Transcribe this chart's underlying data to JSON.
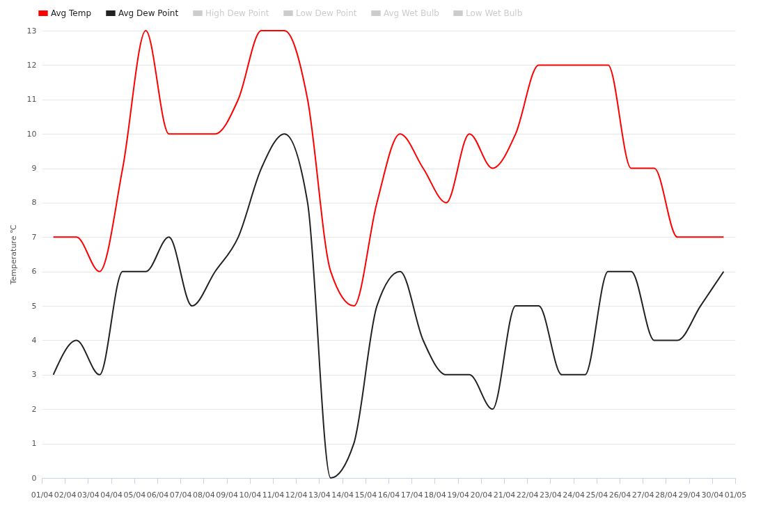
{
  "chart_data": {
    "type": "line",
    "ylabel": "Temperature ℃",
    "x": [
      "--04-01T12:00",
      "--04-02T12:00",
      "--04-03T12:00",
      "--04-04T12:00",
      "--04-05T12:00",
      "--04-06T12:00",
      "--04-07T12:00",
      "--04-08T12:00",
      "--04-09T12:00",
      "--04-10T12:00",
      "--04-11T12:00",
      "--04-12T12:00",
      "--04-13T12:00",
      "--04-14T12:00",
      "--04-15T12:00",
      "--04-16T12:00",
      "--04-17T12:00",
      "--04-18T12:00",
      "--04-19T12:00",
      "--04-20T12:00",
      "--04-21T12:00",
      "--04-22T12:00",
      "--04-23T12:00",
      "--04-24T12:00",
      "--04-25T12:00",
      "--04-26T12:00",
      "--04-27T12:00",
      "--04-28T12:00",
      "--04-29T12:00",
      "--04-30T12:00"
    ],
    "series": [
      {
        "name": "Avg Temp",
        "color": "#ff0000",
        "values": [
          7,
          7,
          6,
          9,
          13,
          10,
          10,
          10,
          11,
          13,
          13,
          11,
          6,
          5,
          8,
          10,
          9,
          8,
          10,
          9,
          10,
          12,
          12,
          12,
          12,
          9,
          9,
          7,
          7,
          7
        ]
      },
      {
        "name": "Avg Dew Point",
        "color": "#222222",
        "values": [
          3,
          4,
          3,
          6,
          6,
          7,
          5,
          6,
          7,
          9,
          10,
          8,
          0,
          1,
          5,
          6,
          4,
          3,
          3,
          2,
          5,
          5,
          3,
          3,
          6,
          6,
          4,
          4,
          5,
          6
        ]
      },
      {
        "name": "High Dew Point",
        "color": "#cccccc",
        "values": [
          null,
          null,
          null,
          null,
          null,
          null,
          null,
          null,
          null,
          null,
          null,
          null,
          null,
          null,
          null,
          null,
          null,
          null,
          null,
          null,
          null,
          null,
          null,
          null,
          null,
          null,
          null,
          null,
          null,
          null
        ]
      },
      {
        "name": "Low Dew Point",
        "color": "#cccccc",
        "values": [
          null,
          null,
          null,
          null,
          null,
          null,
          null,
          null,
          null,
          null,
          null,
          null,
          null,
          null,
          null,
          null,
          null,
          null,
          null,
          null,
          null,
          null,
          null,
          null,
          null,
          null,
          null,
          null,
          null,
          null
        ]
      },
      {
        "name": "Avg Wet Bulb",
        "color": "#cccccc",
        "values": [
          null,
          null,
          null,
          null,
          null,
          null,
          null,
          null,
          null,
          null,
          null,
          null,
          null,
          null,
          null,
          null,
          null,
          null,
          null,
          null,
          null,
          null,
          null,
          null,
          null,
          null,
          null,
          null,
          null,
          null
        ]
      },
      {
        "name": "Low Wet Bulb",
        "color": "#cccccc",
        "values": [
          null,
          null,
          null,
          null,
          null,
          null,
          null,
          null,
          null,
          null,
          null,
          null,
          null,
          null,
          null,
          null,
          null,
          null,
          null,
          null,
          null,
          null,
          null,
          null,
          null,
          null,
          null,
          null,
          null,
          null
        ]
      }
    ],
    "xlim": [
      "--04-01",
      "--05-01"
    ],
    "xticks": [
      {
        "value": "--04-01",
        "label": "01/04"
      },
      {
        "value": "--04-02",
        "label": "02/04"
      },
      {
        "value": "--04-03",
        "label": "03/04"
      },
      {
        "value": "--04-04",
        "label": "04/04"
      },
      {
        "value": "--04-05",
        "label": "05/04"
      },
      {
        "value": "--04-06",
        "label": "06/04"
      },
      {
        "value": "--04-07",
        "label": "07/04"
      },
      {
        "value": "--04-08",
        "label": "08/04"
      },
      {
        "value": "--04-09",
        "label": "09/04"
      },
      {
        "value": "--04-10",
        "label": "10/04"
      },
      {
        "value": "--04-11",
        "label": "11/04"
      },
      {
        "value": "--04-12",
        "label": "12/04"
      },
      {
        "value": "--04-13",
        "label": "13/04"
      },
      {
        "value": "--04-14",
        "label": "14/04"
      },
      {
        "value": "--04-15",
        "label": "15/04"
      },
      {
        "value": "--04-16",
        "label": "16/04"
      },
      {
        "value": "--04-17",
        "label": "17/04"
      },
      {
        "value": "--04-18",
        "label": "18/04"
      },
      {
        "value": "--04-19",
        "label": "19/04"
      },
      {
        "value": "--04-20",
        "label": "20/04"
      },
      {
        "value": "--04-21",
        "label": "21/04"
      },
      {
        "value": "--04-22",
        "label": "22/04"
      },
      {
        "value": "--04-23",
        "label": "23/04"
      },
      {
        "value": "--04-24",
        "label": "24/04"
      },
      {
        "value": "--04-25",
        "label": "25/04"
      },
      {
        "value": "--04-26",
        "label": "26/04"
      },
      {
        "value": "--04-27",
        "label": "27/04"
      },
      {
        "value": "--04-28",
        "label": "28/04"
      },
      {
        "value": "--04-29",
        "label": "29/04"
      },
      {
        "value": "--04-30",
        "label": "30/04"
      },
      {
        "value": "--05-01",
        "label": "01/05"
      }
    ],
    "ylim": [
      0,
      13
    ],
    "yticks": [
      0,
      1,
      2,
      3,
      4,
      5,
      6,
      7,
      8,
      9,
      10,
      11,
      12,
      13
    ],
    "grid": "y",
    "legend": "top left",
    "marker": "none",
    "line_style": "solid"
  }
}
